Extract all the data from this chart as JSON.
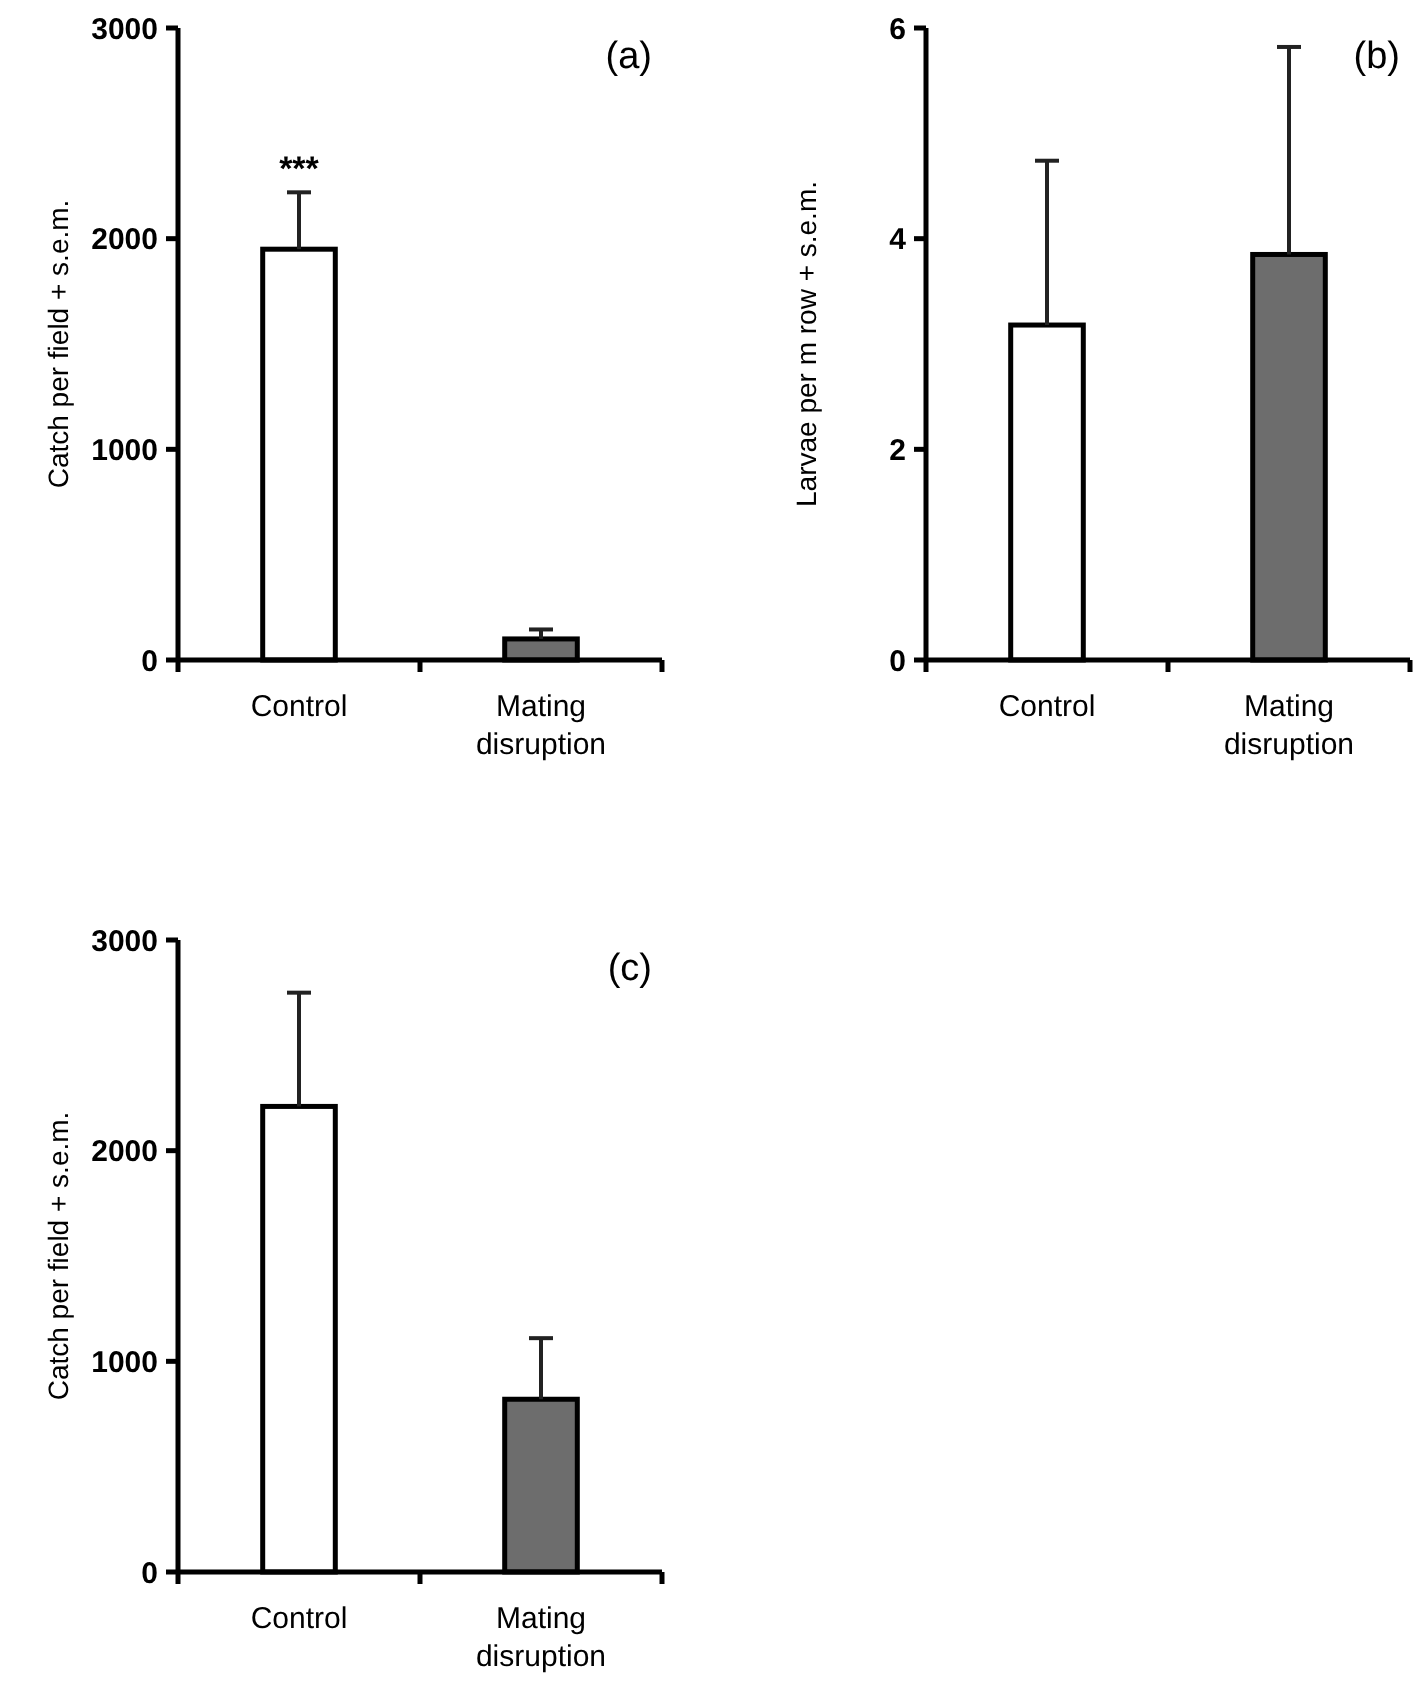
{
  "chart_data": [
    {
      "type": "bar",
      "title": "(a)",
      "ylabel": "Catch per field + s.e.m.",
      "categories": [
        "Control",
        "Mating disruption"
      ],
      "series": [
        {
          "values": [
            1950,
            100
          ],
          "colors": [
            "#ffffff",
            "#6d6d6d"
          ],
          "errors": [
            [
              1950,
              2220
            ],
            [
              100,
              145
            ]
          ]
        }
      ],
      "ylim": [
        0,
        3000
      ],
      "yticks": [
        0,
        1000,
        2000,
        3000
      ],
      "grid": false,
      "annotations": [
        "***"
      ]
    },
    {
      "type": "bar",
      "title": "(b)",
      "ylabel": "Larvae per m row + s.e.m.",
      "categories": [
        "Control",
        "Mating disruption"
      ],
      "series": [
        {
          "values": [
            3.18,
            3.85
          ],
          "colors": [
            "#ffffff",
            "#6d6d6d"
          ],
          "errors": [
            [
              3.18,
              4.74
            ],
            [
              3.85,
              5.82
            ]
          ]
        }
      ],
      "ylim": [
        0,
        6
      ],
      "yticks": [
        0,
        2,
        4,
        6
      ],
      "grid": false
    },
    {
      "type": "bar",
      "title": "(c)",
      "ylabel": "Catch per field + s.e.m.",
      "categories": [
        "Control",
        "Mating disruption"
      ],
      "series": [
        {
          "values": [
            2210,
            820
          ],
          "colors": [
            "#ffffff",
            "#6d6d6d"
          ],
          "errors": [
            [
              2210,
              2750
            ],
            [
              820,
              1110
            ]
          ]
        }
      ],
      "ylim": [
        0,
        3000
      ],
      "yticks": [
        0,
        1000,
        2000,
        3000
      ],
      "grid": false
    }
  ]
}
